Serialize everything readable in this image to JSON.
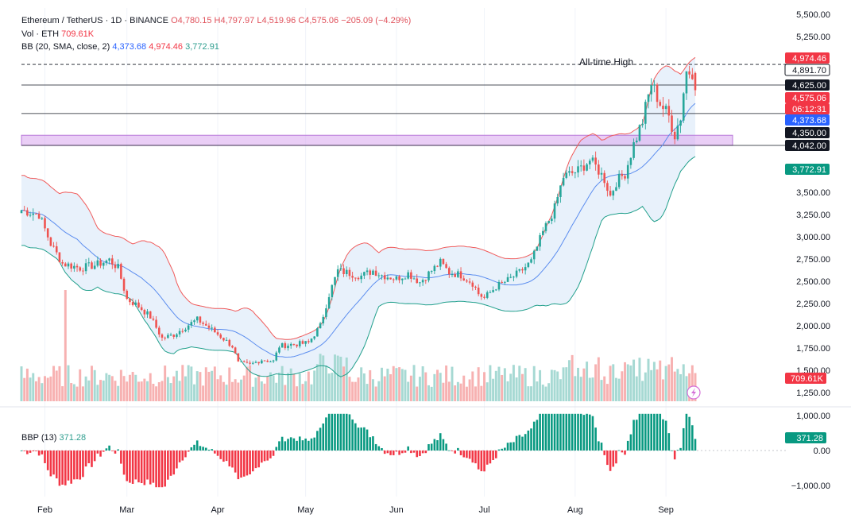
{
  "legend": {
    "symbol": "Ethereum / TetherUS · 1D · BINANCE",
    "open": "O4,780.15",
    "high": "H4,797.97",
    "low": "L4,519.96",
    "close": "C4,575.06",
    "change": "−205.09 (−4.29%)",
    "vol_label": "Vol · ETH",
    "vol_value": "709.61K",
    "bb_label": "BB (20, SMA, close, 2)",
    "bb_basis": "4,373.68",
    "bb_upper": "4,974.46",
    "bb_lower": "3,772.91",
    "bbp_label": "BBP (13)",
    "bbp_value": "371.28"
  },
  "annotation": "All-time High",
  "colors": {
    "up": "#26a69a",
    "down": "#ef5350",
    "bb_upper": "#f05b5b",
    "bb_basis": "#5b8def",
    "bb_lower": "#22a08c",
    "bb_fill": "#e8f1fb",
    "zone": "#d9a6ee"
  },
  "chart_data": {
    "type": "candlestick",
    "x_ticks": [
      "Feb",
      "Mar",
      "Apr",
      "May",
      "Jun",
      "Jul",
      "Aug",
      "Sep"
    ],
    "y_ticks": [
      "5,500.00",
      "5,250.00",
      "3,500.00",
      "3,250.00",
      "3,000.00",
      "2,750.00",
      "2,500.00",
      "2,250.00",
      "2,000.00",
      "1,750.00",
      "1,500.00",
      "1,250.00"
    ],
    "ylim": [
      1250,
      5500
    ],
    "price_labels": [
      {
        "text": "4,974.46",
        "value": 4974.46,
        "style": "upper"
      },
      {
        "text": "4,891.70",
        "value": 4891.7,
        "style": "line"
      },
      {
        "text": "4,625.00",
        "value": 4625,
        "style": "black"
      },
      {
        "text": "4,575.06",
        "value": 4575.06,
        "style": "close"
      },
      {
        "text": "06:12:31",
        "value": 4520,
        "style": "timer"
      },
      {
        "text": "4,373.68",
        "value": 4373.68,
        "style": "basis"
      },
      {
        "text": "4,350.00",
        "value": 4350,
        "style": "black"
      },
      {
        "text": "4,042.00",
        "value": 4042,
        "style": "black"
      },
      {
        "text": "3,772.91",
        "value": 3772.91,
        "style": "lower"
      }
    ],
    "volume_label": "709.61K",
    "horizontal_lines": [
      {
        "value": 4891.7,
        "style": "dashed"
      },
      {
        "value": 4625,
        "style": "solid"
      },
      {
        "value": 4350,
        "style": "solid"
      },
      {
        "value": 4042,
        "style": "solid"
      }
    ],
    "zone": {
      "from": 4042,
      "to": 4140
    },
    "anchors": [
      [
        0,
        3300
      ],
      [
        6,
        3250
      ],
      [
        10,
        2920
      ],
      [
        14,
        2700
      ],
      [
        20,
        2650
      ],
      [
        25,
        2680
      ],
      [
        30,
        2740
      ],
      [
        33,
        2650
      ],
      [
        36,
        2300
      ],
      [
        40,
        2220
      ],
      [
        44,
        2100
      ],
      [
        48,
        1860
      ],
      [
        52,
        1900
      ],
      [
        57,
        2010
      ],
      [
        60,
        2070
      ],
      [
        64,
        1980
      ],
      [
        68,
        1880
      ],
      [
        72,
        1770
      ],
      [
        74,
        1580
      ],
      [
        78,
        1560
      ],
      [
        82,
        1620
      ],
      [
        86,
        1600
      ],
      [
        88,
        1770
      ],
      [
        92,
        1790
      ],
      [
        96,
        1800
      ],
      [
        98,
        1810
      ],
      [
        102,
        2000
      ],
      [
        105,
        2350
      ],
      [
        108,
        2620
      ],
      [
        112,
        2590
      ],
      [
        116,
        2560
      ],
      [
        120,
        2620
      ],
      [
        123,
        2570
      ],
      [
        128,
        2530
      ],
      [
        132,
        2590
      ],
      [
        136,
        2490
      ],
      [
        140,
        2620
      ],
      [
        143,
        2710
      ],
      [
        146,
        2600
      ],
      [
        150,
        2570
      ],
      [
        154,
        2480
      ],
      [
        156,
        2360
      ],
      [
        158,
        2310
      ],
      [
        162,
        2440
      ],
      [
        166,
        2510
      ],
      [
        170,
        2600
      ],
      [
        174,
        2720
      ],
      [
        178,
        3050
      ],
      [
        182,
        3320
      ],
      [
        185,
        3680
      ],
      [
        190,
        3750
      ],
      [
        194,
        3870
      ],
      [
        196,
        3800
      ],
      [
        199,
        3650
      ],
      [
        201,
        3460
      ],
      [
        203,
        3620
      ],
      [
        206,
        3720
      ],
      [
        209,
        4050
      ],
      [
        212,
        4280
      ],
      [
        215,
        4640
      ],
      [
        218,
        4450
      ],
      [
        221,
        4320
      ],
      [
        223,
        4150
      ],
      [
        225,
        4320
      ],
      [
        227,
        4800
      ],
      [
        229,
        4780
      ],
      [
        230,
        4575
      ]
    ],
    "bbp": {
      "value": 371.28,
      "ylim": [
        -1000,
        1000
      ],
      "y_ticks": [
        "1,000.00",
        "0.00",
        "−1,000.00"
      ]
    }
  }
}
